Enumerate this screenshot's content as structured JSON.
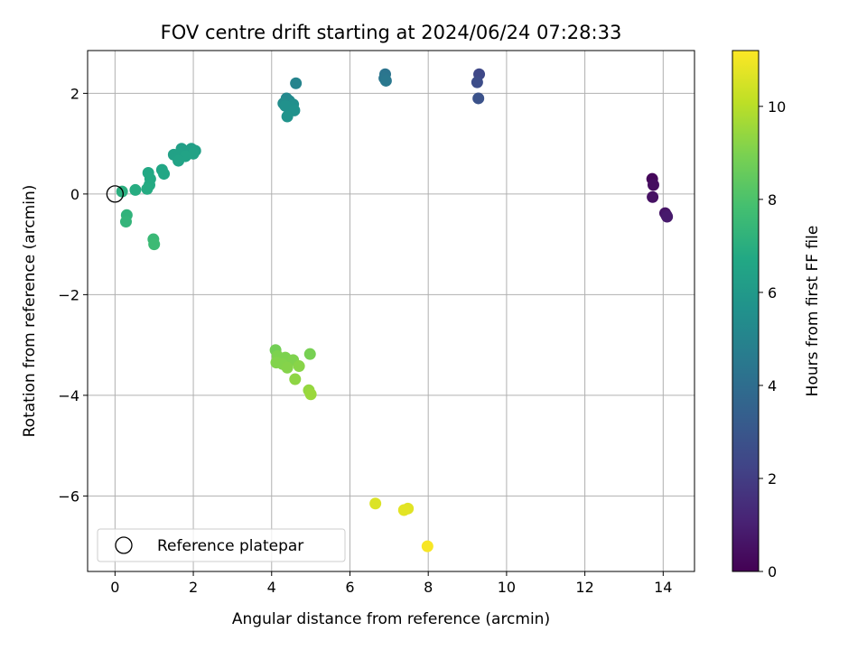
{
  "chart_data": {
    "type": "scatter",
    "title": "FOV centre drift starting at 2024/06/24 07:28:33",
    "xlabel": "Angular distance from reference (arcmin)",
    "ylabel": "Rotation from reference (arcmin)",
    "xlim": [
      -0.7,
      14.8
    ],
    "ylim": [
      -7.5,
      2.85
    ],
    "x_ticks": [
      0,
      2,
      4,
      6,
      8,
      10,
      12,
      14
    ],
    "y_ticks": [
      -6,
      -4,
      -2,
      0,
      2
    ],
    "x_tick_labels": [
      "0",
      "2",
      "4",
      "6",
      "8",
      "10",
      "12",
      "14"
    ],
    "y_tick_labels": [
      "−6",
      "−4",
      "−2",
      "0",
      "2"
    ],
    "grid": true,
    "legend": {
      "placement": "lower-left",
      "entries": [
        "Reference platepar"
      ]
    },
    "reference_point": {
      "x": 0,
      "y": 0,
      "marker": "open-circle"
    },
    "colormap": "viridis",
    "colorbar": {
      "label": "Hours from first FF file",
      "range": [
        0,
        11.2
      ],
      "ticks": [
        0,
        2,
        4,
        6,
        8,
        10
      ],
      "tick_labels": [
        "0",
        "2",
        "4",
        "6",
        "8",
        "10"
      ]
    },
    "points": [
      {
        "x": 13.72,
        "y": 0.3,
        "h": 0.2
      },
      {
        "x": 13.75,
        "y": 0.18,
        "h": 0.4
      },
      {
        "x": 13.73,
        "y": -0.06,
        "h": 0.5
      },
      {
        "x": 14.05,
        "y": -0.38,
        "h": 0.6
      },
      {
        "x": 14.08,
        "y": -0.42,
        "h": 0.7
      },
      {
        "x": 14.1,
        "y": -0.45,
        "h": 0.8
      },
      {
        "x": 9.3,
        "y": 2.38,
        "h": 2.4
      },
      {
        "x": 9.25,
        "y": 2.22,
        "h": 2.6
      },
      {
        "x": 9.28,
        "y": 1.9,
        "h": 2.8
      },
      {
        "x": 6.9,
        "y": 2.38,
        "h": 4.3
      },
      {
        "x": 6.88,
        "y": 2.3,
        "h": 4.4
      },
      {
        "x": 6.92,
        "y": 2.25,
        "h": 4.5
      },
      {
        "x": 4.62,
        "y": 2.2,
        "h": 5.0
      },
      {
        "x": 4.38,
        "y": 1.9,
        "h": 5.2
      },
      {
        "x": 4.45,
        "y": 1.85,
        "h": 5.3
      },
      {
        "x": 4.3,
        "y": 1.8,
        "h": 5.4
      },
      {
        "x": 4.55,
        "y": 1.78,
        "h": 5.5
      },
      {
        "x": 4.48,
        "y": 1.72,
        "h": 5.55
      },
      {
        "x": 4.35,
        "y": 1.75,
        "h": 5.6
      },
      {
        "x": 4.58,
        "y": 1.66,
        "h": 5.65
      },
      {
        "x": 4.4,
        "y": 1.54,
        "h": 5.7
      },
      {
        "x": 1.7,
        "y": 0.9,
        "h": 6.3
      },
      {
        "x": 1.95,
        "y": 0.9,
        "h": 6.3
      },
      {
        "x": 2.05,
        "y": 0.86,
        "h": 6.35
      },
      {
        "x": 1.5,
        "y": 0.78,
        "h": 6.4
      },
      {
        "x": 1.65,
        "y": 0.8,
        "h": 6.4
      },
      {
        "x": 2.0,
        "y": 0.8,
        "h": 6.45
      },
      {
        "x": 1.8,
        "y": 0.75,
        "h": 6.5
      },
      {
        "x": 1.62,
        "y": 0.66,
        "h": 6.5
      },
      {
        "x": 1.2,
        "y": 0.48,
        "h": 6.6
      },
      {
        "x": 1.25,
        "y": 0.4,
        "h": 6.65
      },
      {
        "x": 0.85,
        "y": 0.42,
        "h": 6.7
      },
      {
        "x": 0.9,
        "y": 0.3,
        "h": 6.75
      },
      {
        "x": 0.88,
        "y": 0.18,
        "h": 6.8
      },
      {
        "x": 0.82,
        "y": 0.1,
        "h": 6.85
      },
      {
        "x": 0.52,
        "y": 0.08,
        "h": 6.9
      },
      {
        "x": 0.18,
        "y": 0.05,
        "h": 7.0
      },
      {
        "x": 0.3,
        "y": -0.42,
        "h": 7.2
      },
      {
        "x": 0.28,
        "y": -0.55,
        "h": 7.3
      },
      {
        "x": 0.98,
        "y": -0.9,
        "h": 7.5
      },
      {
        "x": 1.0,
        "y": -1.0,
        "h": 7.6
      },
      {
        "x": 4.1,
        "y": -3.1,
        "h": 8.8
      },
      {
        "x": 4.98,
        "y": -3.18,
        "h": 8.9
      },
      {
        "x": 4.15,
        "y": -3.22,
        "h": 9.0
      },
      {
        "x": 4.35,
        "y": -3.25,
        "h": 9.0
      },
      {
        "x": 4.55,
        "y": -3.3,
        "h": 9.05
      },
      {
        "x": 4.12,
        "y": -3.35,
        "h": 9.1
      },
      {
        "x": 4.28,
        "y": -3.38,
        "h": 9.1
      },
      {
        "x": 4.4,
        "y": -3.45,
        "h": 9.15
      },
      {
        "x": 4.7,
        "y": -3.42,
        "h": 9.2
      },
      {
        "x": 4.6,
        "y": -3.68,
        "h": 9.3
      },
      {
        "x": 4.95,
        "y": -3.9,
        "h": 9.4
      },
      {
        "x": 5.0,
        "y": -3.98,
        "h": 9.5
      },
      {
        "x": 6.65,
        "y": -6.15,
        "h": 10.6
      },
      {
        "x": 7.48,
        "y": -6.25,
        "h": 10.7
      },
      {
        "x": 7.38,
        "y": -6.28,
        "h": 10.75
      },
      {
        "x": 7.98,
        "y": -7.0,
        "h": 11.1
      }
    ]
  }
}
